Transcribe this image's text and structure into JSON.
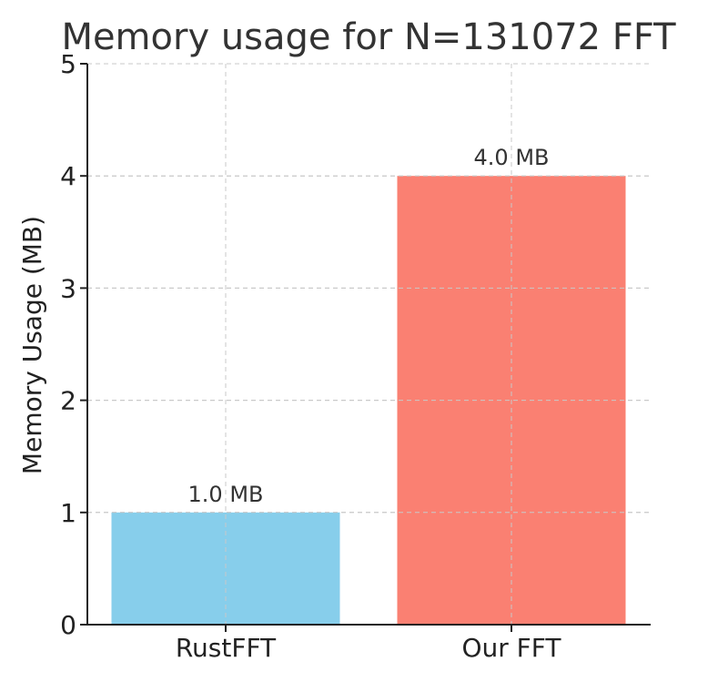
{
  "chart_data": {
    "type": "bar",
    "title": "Memory usage for N=131072 FFT",
    "xlabel": "",
    "ylabel": "Memory Usage (MB)",
    "categories": [
      "RustFFT",
      "Our FFT"
    ],
    "values": [
      1.0,
      4.0
    ],
    "data_labels": [
      "1.0 MB",
      "4.0 MB"
    ],
    "colors": [
      "#87CEEB",
      "#FA8072"
    ],
    "ylim": [
      0,
      5
    ],
    "yticks": [
      0,
      1,
      2,
      3,
      4,
      5
    ],
    "ytick_labels": [
      "0",
      "1",
      "2",
      "3",
      "4",
      "5"
    ],
    "grid": true,
    "legend": false
  }
}
